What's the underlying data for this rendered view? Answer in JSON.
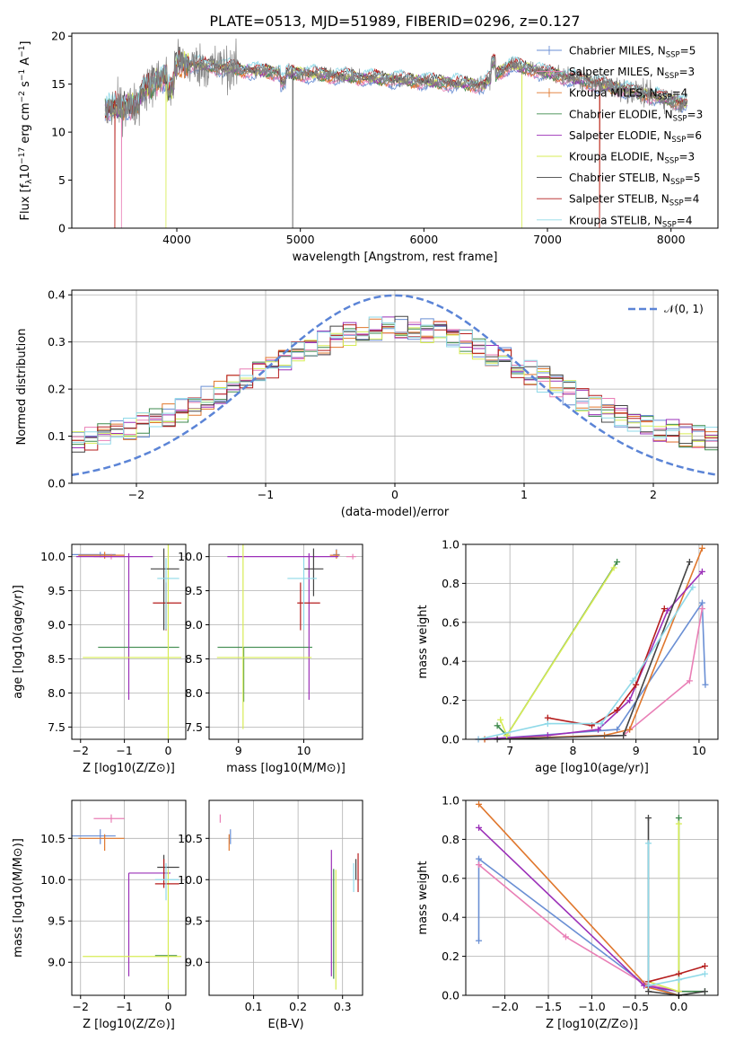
{
  "chart_data": [
    {
      "type": "line",
      "title": "PLATE=0513, MJD=51989, FIBERID=0296, z=0.127",
      "xlabel": "wavelength [Angstrom, rest frame]",
      "ylabel_parts": [
        "Flux [f",
        "λ",
        "10",
        "−17",
        " erg cm",
        "−2",
        " s",
        "−1",
        " A",
        "−1",
        "]"
      ],
      "xlim": [
        3150,
        8380
      ],
      "ylim": [
        0,
        20.3
      ],
      "xticks": [
        4000,
        5000,
        6000,
        7000,
        8000
      ],
      "yticks": [
        0,
        5,
        10,
        15,
        20
      ],
      "grid": false,
      "legend_position": "upper-right",
      "spectrum_range": [
        3420,
        8130
      ],
      "series": [
        {
          "name": "Chabrier MILES, N",
          "sub": "SSP",
          "suffix": "=5",
          "color": "#6a8fd4",
          "marker": true
        },
        {
          "name": "Salpeter MILES, N",
          "sub": "SSP",
          "suffix": "=3",
          "color": "#e97fb6",
          "marker": true
        },
        {
          "name": "Kroupa MILES, N",
          "sub": "SSP",
          "suffix": "=4",
          "color": "#e0772d",
          "marker": true
        },
        {
          "name": "Chabrier ELODIE, N",
          "sub": "SSP",
          "suffix": "=3",
          "color": "#3e8a4c",
          "marker": false
        },
        {
          "name": "Salpeter ELODIE, N",
          "sub": "SSP",
          "suffix": "=6",
          "color": "#9b30b8",
          "marker": false
        },
        {
          "name": "Kroupa ELODIE, N",
          "sub": "SSP",
          "suffix": "=3",
          "color": "#d7ec54",
          "marker": false
        },
        {
          "name": "Chabrier STELIB, N",
          "sub": "SSP",
          "suffix": "=5",
          "color": "#444444",
          "marker": false
        },
        {
          "name": "Salpeter STELIB, N",
          "sub": "SSP",
          "suffix": "=4",
          "color": "#b51d1d",
          "marker": false
        },
        {
          "name": "Kroupa STELIB, N",
          "sub": "SSP",
          "suffix": "=4",
          "color": "#8fd9e8",
          "marker": false
        }
      ],
      "data_color": "#808080"
    },
    {
      "type": "histogram",
      "xlabel": "(data-model)/error",
      "ylabel": "Normed distribution",
      "xlim": [
        -2.5,
        2.5
      ],
      "ylim": [
        0,
        0.41
      ],
      "xticks": [
        -2,
        -1,
        0,
        1,
        2
      ],
      "xtick_labels": [
        "−2",
        "−1",
        "0",
        "1",
        "2"
      ],
      "yticks": [
        0.0,
        0.1,
        0.2,
        0.3,
        0.4
      ],
      "ytick_labels": [
        "0.0",
        "0.1",
        "0.2",
        "0.3",
        "0.4"
      ],
      "grid": true,
      "bins": 50,
      "gaussian": {
        "label": "𝒩(0, 1)",
        "color": "#5b84d6",
        "dashed": true
      },
      "legend_position": "upper-right"
    },
    {
      "type": "errorbar",
      "xlabel": "Z [log10(Z/Z⊙)]",
      "ylabel": "age  [log10(age/yr)]",
      "xlim": [
        -2.2,
        0.4
      ],
      "ylim": [
        7.32,
        10.18
      ],
      "xticks": [
        -2,
        -1,
        0
      ],
      "xtick_labels": [
        "−2",
        "−1",
        "0"
      ],
      "yticks": [
        7.5,
        8.0,
        8.5,
        9.0,
        9.5,
        10.0
      ],
      "ytick_labels": [
        "7.5",
        "8.0",
        "8.5",
        "9.0",
        "9.5",
        "10.0"
      ],
      "points": [
        {
          "x": -1.55,
          "xerr": [
            0.65,
            0.35
          ],
          "y": 10.03,
          "yerr": [
            0.04,
            0.04
          ],
          "color": "#6a8fd4"
        },
        {
          "x": -1.3,
          "xerr": [
            0.4,
            0.3
          ],
          "y": 10.0,
          "yerr": [
            0.04,
            0.04
          ],
          "color": "#e97fb6"
        },
        {
          "x": -1.45,
          "xerr": [
            0.6,
            0.45
          ],
          "y": 10.02,
          "yerr": [
            0.05,
            0.05
          ],
          "color": "#e0772d"
        },
        {
          "x": -0.3,
          "xerr": [
            1.3,
            0.55
          ],
          "y": 8.67,
          "yerr": [
            0.0,
            0.0
          ],
          "color": "#3e8a4c"
        },
        {
          "x": -0.9,
          "xerr": [
            1.2,
            0.55
          ],
          "y": 10.0,
          "yerr": [
            2.1,
            0.05
          ],
          "color": "#9b30b8"
        },
        {
          "x": 0.0,
          "xerr": [
            1.95,
            0.3
          ],
          "y": 8.52,
          "yerr": [
            1.2,
            1.7
          ],
          "color": "#d7ec54"
        },
        {
          "x": -0.1,
          "xerr": [
            0.3,
            0.35
          ],
          "y": 9.82,
          "yerr": [
            0.9,
            0.3
          ],
          "color": "#444444"
        },
        {
          "x": -0.05,
          "xerr": [
            0.3,
            0.35
          ],
          "y": 9.32,
          "yerr": [
            0.4,
            0.3
          ],
          "color": "#b51d1d"
        },
        {
          "x": -0.05,
          "xerr": [
            0.2,
            0.3
          ],
          "y": 9.68,
          "yerr": [
            0.75,
            0.3
          ],
          "color": "#8fd9e8"
        }
      ]
    },
    {
      "type": "errorbar",
      "xlabel": "mass [log10(M/M⊙)]",
      "xlim": [
        8.55,
        10.9
      ],
      "ylim": [
        7.32,
        10.18
      ],
      "xticks": [
        9,
        10
      ],
      "xtick_labels": [
        "9",
        "10"
      ],
      "yticks": [
        7.5,
        8.0,
        8.5,
        9.0,
        9.5,
        10.0
      ],
      "ytick_labels": [
        "7.5",
        "8.0",
        "8.5",
        "9.0",
        "9.5",
        "10.0"
      ],
      "points": [
        {
          "x": 10.5,
          "xerr": [
            0.05,
            0.05
          ],
          "y": 10.03,
          "yerr": [
            0.04,
            0.08
          ],
          "color": "#6a8fd4"
        },
        {
          "x": 10.75,
          "xerr": [
            0.1,
            0.05
          ],
          "y": 10.0,
          "yerr": [
            0.04,
            0.04
          ],
          "color": "#e97fb6"
        },
        {
          "x": 10.5,
          "xerr": [
            0.1,
            0.05
          ],
          "y": 10.02,
          "yerr": [
            0.05,
            0.08
          ],
          "color": "#e0772d"
        },
        {
          "x": 9.08,
          "xerr": [
            0.4,
            1.05
          ],
          "y": 8.67,
          "yerr": [
            0.8,
            0.0
          ],
          "color": "#3e8a4c"
        },
        {
          "x": 10.08,
          "xerr": [
            1.25,
            0.45
          ],
          "y": 10.0,
          "yerr": [
            2.1,
            0.05
          ],
          "color": "#9b30b8"
        },
        {
          "x": 9.07,
          "xerr": [
            0.4,
            1.05
          ],
          "y": 8.52,
          "yerr": [
            1.05,
            1.7
          ],
          "color": "#d7ec54"
        },
        {
          "x": 10.15,
          "xerr": [
            0.15,
            0.15
          ],
          "y": 9.82,
          "yerr": [
            0.4,
            0.3
          ],
          "color": "#444444"
        },
        {
          "x": 9.95,
          "xerr": [
            0.05,
            0.3
          ],
          "y": 9.32,
          "yerr": [
            0.4,
            0.3
          ],
          "color": "#b51d1d"
        },
        {
          "x": 10.0,
          "xerr": [
            0.25,
            0.2
          ],
          "y": 9.68,
          "yerr": [
            0.75,
            0.3
          ],
          "color": "#8fd9e8"
        }
      ]
    },
    {
      "type": "line",
      "xlabel": "age  [log10(age/yr)]",
      "ylabel": "mass weight",
      "xlim": [
        6.3,
        10.3
      ],
      "ylim": [
        0,
        1.0
      ],
      "xticks": [
        7,
        8,
        9,
        10
      ],
      "xtick_labels": [
        "7",
        "8",
        "9",
        "10"
      ],
      "yticks": [
        0.0,
        0.2,
        0.4,
        0.6,
        0.8,
        1.0
      ],
      "ytick_labels": [
        "0.0",
        "0.2",
        "0.4",
        "0.6",
        "0.8",
        "1.0"
      ],
      "grid": true,
      "series": [
        {
          "color": "#6a8fd4",
          "x": [
            6.6,
            8.7,
            10.05,
            10.1
          ],
          "y": [
            0.0,
            0.05,
            0.7,
            0.28
          ]
        },
        {
          "color": "#e97fb6",
          "x": [
            6.6,
            8.8,
            9.85,
            10.05
          ],
          "y": [
            0.0,
            0.02,
            0.3,
            0.67
          ]
        },
        {
          "color": "#e0772d",
          "x": [
            6.6,
            8.5,
            8.9,
            10.05
          ],
          "y": [
            0.0,
            0.02,
            0.05,
            0.98
          ]
        },
        {
          "color": "#3e8a4c",
          "x": [
            6.8,
            6.95,
            8.7
          ],
          "y": [
            0.07,
            0.02,
            0.91
          ]
        },
        {
          "color": "#9b30b8",
          "x": [
            6.5,
            7.6,
            8.4,
            8.9,
            9.5,
            10.05
          ],
          "y": [
            0.0,
            0.02,
            0.05,
            0.2,
            0.66,
            0.86
          ]
        },
        {
          "color": "#d7ec54",
          "x": [
            6.85,
            6.95,
            8.65
          ],
          "y": [
            0.1,
            0.02,
            0.88
          ]
        },
        {
          "color": "#444444",
          "x": [
            6.8,
            8.8,
            9.85
          ],
          "y": [
            0.0,
            0.02,
            0.91
          ]
        },
        {
          "color": "#b51d1d",
          "x": [
            7.6,
            8.3,
            8.7,
            9.0,
            9.45
          ],
          "y": [
            0.11,
            0.07,
            0.15,
            0.28,
            0.67
          ]
        },
        {
          "color": "#8fd9e8",
          "x": [
            6.5,
            7.6,
            8.45,
            8.95,
            9.9
          ],
          "y": [
            0.0,
            0.08,
            0.08,
            0.3,
            0.78
          ]
        }
      ]
    },
    {
      "type": "errorbar",
      "xlabel": "Z [log10(Z/Z⊙)]",
      "ylabel": "mass [log10(M/M⊙)]",
      "xlim": [
        -2.2,
        0.4
      ],
      "ylim": [
        8.6,
        10.96
      ],
      "xticks": [
        -2,
        -1,
        0
      ],
      "xtick_labels": [
        "−2",
        "−1",
        "0"
      ],
      "yticks": [
        9.0,
        9.5,
        10.0,
        10.5
      ],
      "ytick_labels": [
        "9.0",
        "9.5",
        "10.0",
        "10.5"
      ],
      "points": [
        {
          "x": -1.55,
          "xerr": [
            0.65,
            0.35
          ],
          "y": 10.53,
          "yerr": [
            0.1,
            0.08
          ],
          "color": "#6a8fd4"
        },
        {
          "x": -1.3,
          "xerr": [
            0.4,
            0.3
          ],
          "y": 10.74,
          "yerr": [
            0.05,
            0.05
          ],
          "color": "#e97fb6"
        },
        {
          "x": -1.45,
          "xerr": [
            0.6,
            0.45
          ],
          "y": 10.5,
          "yerr": [
            0.15,
            0.05
          ],
          "color": "#e0772d"
        },
        {
          "x": -0.3,
          "xerr": [
            0.0,
            0.5
          ],
          "y": 9.08,
          "yerr": [
            0.0,
            0.0
          ],
          "color": "#3e8a4c"
        },
        {
          "x": -0.9,
          "xerr": [
            0.0,
            0.95
          ],
          "y": 10.08,
          "yerr": [
            1.25,
            0.0
          ],
          "color": "#9b30b8"
        },
        {
          "x": 0.0,
          "xerr": [
            1.95,
            0.3
          ],
          "y": 9.07,
          "yerr": [
            0.4,
            1.05
          ],
          "color": "#d7ec54"
        },
        {
          "x": -0.1,
          "xerr": [
            0.15,
            0.35
          ],
          "y": 10.15,
          "yerr": [
            0.15,
            0.15
          ],
          "color": "#444444"
        },
        {
          "x": -0.1,
          "xerr": [
            0.2,
            0.35
          ],
          "y": 9.95,
          "yerr": [
            0.05,
            0.3
          ],
          "color": "#b51d1d"
        },
        {
          "x": -0.05,
          "xerr": [
            0.25,
            0.3
          ],
          "y": 10.0,
          "yerr": [
            0.25,
            0.2
          ],
          "color": "#8fd9e8"
        }
      ]
    },
    {
      "type": "errorbar",
      "xlabel": "E(B-V)",
      "xlim": [
        0.0,
        0.345
      ],
      "ylim": [
        8.6,
        10.96
      ],
      "xticks": [
        0.1,
        0.2,
        0.3
      ],
      "xtick_labels": [
        "0.1",
        "0.2",
        "0.3"
      ],
      "yticks": [
        9.0,
        9.5,
        10.0,
        10.5
      ],
      "ytick_labels": [
        "9.0",
        "9.5",
        "10.0",
        "10.5"
      ],
      "points": [
        {
          "x": 0.048,
          "xerr": [
            0.0,
            0.0
          ],
          "y": 10.53,
          "yerr": [
            0.1,
            0.08
          ],
          "color": "#6a8fd4"
        },
        {
          "x": 0.025,
          "xerr": [
            0.0,
            0.0
          ],
          "y": 10.74,
          "yerr": [
            0.05,
            0.05
          ],
          "color": "#e97fb6"
        },
        {
          "x": 0.045,
          "xerr": [
            0.0,
            0.0
          ],
          "y": 10.5,
          "yerr": [
            0.15,
            0.05
          ],
          "color": "#e0772d"
        },
        {
          "x": 0.28,
          "xerr": [
            0.0,
            0.0
          ],
          "y": 9.08,
          "yerr": [
            0.28,
            1.05
          ],
          "color": "#3e8a4c"
        },
        {
          "x": 0.275,
          "xerr": [
            0.0,
            0.0
          ],
          "y": 10.08,
          "yerr": [
            1.25,
            0.28
          ],
          "color": "#9b30b8"
        },
        {
          "x": 0.285,
          "xerr": [
            0.0,
            0.0
          ],
          "y": 9.07,
          "yerr": [
            0.4,
            1.05
          ],
          "color": "#d7ec54"
        },
        {
          "x": 0.33,
          "xerr": [
            0.0,
            0.0
          ],
          "y": 10.15,
          "yerr": [
            0.15,
            0.1
          ],
          "color": "#444444"
        },
        {
          "x": 0.335,
          "xerr": [
            0.0,
            0.0
          ],
          "y": 9.95,
          "yerr": [
            0.1,
            0.37
          ],
          "color": "#b51d1d"
        },
        {
          "x": 0.325,
          "xerr": [
            0.0,
            0.0
          ],
          "y": 10.0,
          "yerr": [
            0.15,
            0.2
          ],
          "color": "#8fd9e8"
        }
      ]
    },
    {
      "type": "line",
      "xlabel": "Z [log10(Z/Z⊙)]",
      "ylabel": "mass weight",
      "xlim": [
        -2.45,
        0.45
      ],
      "ylim": [
        0,
        1.0
      ],
      "xticks": [
        -2.0,
        -1.5,
        -1.0,
        -0.5,
        0.0
      ],
      "xtick_labels": [
        "−2.0",
        "−1.5",
        "−1.0",
        "−0.5",
        "0.0"
      ],
      "yticks": [
        0.0,
        0.2,
        0.4,
        0.6,
        0.8,
        1.0
      ],
      "ytick_labels": [
        "0.0",
        "0.2",
        "0.4",
        "0.6",
        "0.8",
        "1.0"
      ],
      "grid": true,
      "series": [
        {
          "color": "#6a8fd4",
          "x": [
            -2.3,
            -2.3,
            -0.4,
            0.0
          ],
          "y": [
            0.28,
            0.7,
            0.06,
            0.0
          ]
        },
        {
          "color": "#e97fb6",
          "x": [
            -2.3,
            -1.3,
            -0.4,
            0.0
          ],
          "y": [
            0.67,
            0.3,
            0.06,
            0.02
          ]
        },
        {
          "color": "#e0772d",
          "x": [
            -2.3,
            -0.35,
            0.0
          ],
          "y": [
            0.98,
            0.04,
            0.0
          ]
        },
        {
          "color": "#3e8a4c",
          "x": [
            0.0,
            0.0,
            0.3
          ],
          "y": [
            0.91,
            0.02,
            0.02
          ]
        },
        {
          "color": "#9b30b8",
          "x": [
            -2.3,
            -0.4,
            0.0
          ],
          "y": [
            0.86,
            0.05,
            0.02
          ]
        },
        {
          "color": "#d7ec54",
          "x": [
            -0.35,
            0.0,
            0.0
          ],
          "y": [
            0.07,
            0.02,
            0.88
          ]
        },
        {
          "color": "#444444",
          "x": [
            -0.35,
            -0.35,
            0.0,
            0.3
          ],
          "y": [
            0.91,
            0.02,
            0.0,
            0.02
          ]
        },
        {
          "color": "#b51d1d",
          "x": [
            -0.35,
            0.0,
            0.3
          ],
          "y": [
            0.07,
            0.11,
            0.15
          ]
        },
        {
          "color": "#8fd9e8",
          "x": [
            -0.35,
            -0.35,
            0.0,
            0.3
          ],
          "y": [
            0.78,
            0.05,
            0.08,
            0.11
          ]
        }
      ]
    }
  ]
}
